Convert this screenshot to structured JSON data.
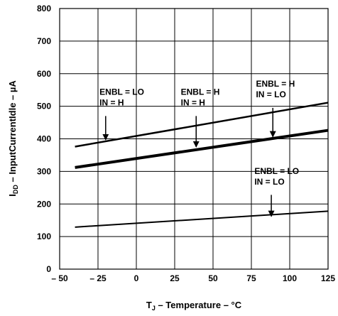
{
  "chart_data": {
    "type": "line",
    "title": "",
    "xlabel": {
      "main": "T",
      "sub": "J",
      "rest": " – Temperature – °C"
    },
    "ylabel": {
      "main": "I",
      "sub": "DD",
      "rest": " – InputCurrentIdle – µA"
    },
    "xlim": [
      -50,
      125
    ],
    "ylim": [
      0,
      800
    ],
    "xticks": [
      -50,
      -25,
      0,
      25,
      50,
      75,
      100,
      125
    ],
    "xtick_labels": [
      "– 50",
      "– 25",
      "0",
      "25",
      "50",
      "75",
      "100",
      "125"
    ],
    "yticks": [
      0,
      100,
      200,
      300,
      400,
      500,
      600,
      700,
      800
    ],
    "ytick_labels": [
      "0",
      "100",
      "200",
      "300",
      "400",
      "500",
      "600",
      "700",
      "800"
    ],
    "grid": true,
    "series": [
      {
        "x": [
          -40,
          125
        ],
        "y": [
          376,
          511
        ],
        "weight": 2.5
      },
      {
        "x": [
          -40,
          125
        ],
        "y": [
          312,
          426
        ],
        "weight": 4
      },
      {
        "x": [
          -40,
          125
        ],
        "y": [
          129,
          178
        ],
        "weight": 2
      }
    ],
    "annotations": [
      {
        "lines": [
          "ENBL = LO",
          "IN = H"
        ],
        "text_at": [
          -24,
          535
        ],
        "arrow_from": [
          -20,
          470
        ],
        "arrow_to": [
          -20,
          397
        ]
      },
      {
        "lines": [
          "ENBL = H",
          "IN = H"
        ],
        "text_at": [
          29,
          535
        ],
        "arrow_from": [
          39,
          470
        ],
        "arrow_to": [
          39,
          375
        ]
      },
      {
        "lines": [
          "ENBL = H",
          "IN = LO"
        ],
        "text_at": [
          78,
          560
        ],
        "arrow_from": [
          89,
          495
        ],
        "arrow_to": [
          89,
          406
        ]
      },
      {
        "lines": [
          "ENBL = LO",
          "IN = LO"
        ],
        "text_at": [
          77,
          292
        ],
        "arrow_from": [
          88,
          228
        ],
        "arrow_to": [
          88,
          162
        ]
      }
    ]
  }
}
